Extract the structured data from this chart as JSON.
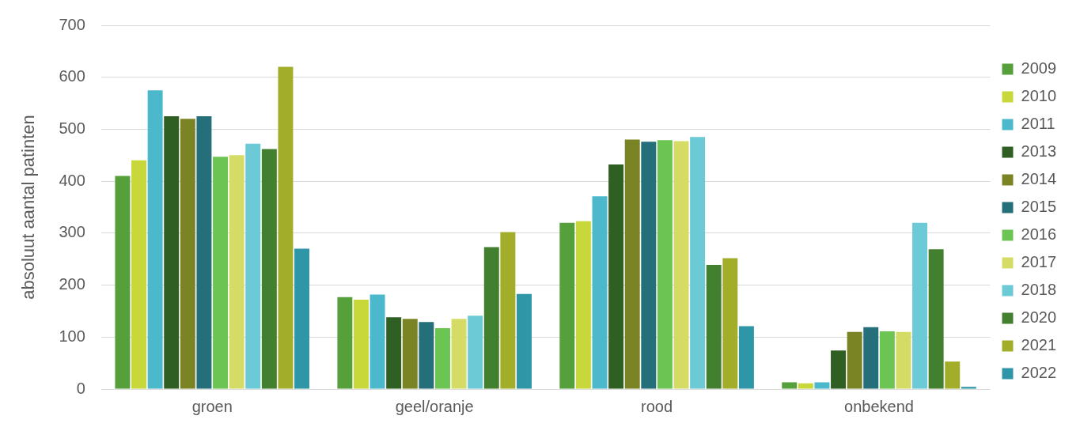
{
  "chart_data": {
    "type": "bar",
    "ylabel": "absoluut aantal patinten",
    "categories": [
      "groen",
      "geel/oranje",
      "rood",
      "onbekend"
    ],
    "series": [
      {
        "name": "2009",
        "color": "#56a03c",
        "values": [
          410,
          177,
          320,
          13
        ]
      },
      {
        "name": "2010",
        "color": "#c8d83a",
        "values": [
          440,
          172,
          323,
          11
        ]
      },
      {
        "name": "2011",
        "color": "#4bb8cc",
        "values": [
          575,
          182,
          371,
          13
        ]
      },
      {
        "name": "2013",
        "color": "#2f5f22",
        "values": [
          525,
          138,
          432,
          74
        ]
      },
      {
        "name": "2014",
        "color": "#7a8424",
        "values": [
          520,
          135,
          480,
          110
        ]
      },
      {
        "name": "2015",
        "color": "#256f7a",
        "values": [
          525,
          129,
          476,
          119
        ]
      },
      {
        "name": "2016",
        "color": "#6cc452",
        "values": [
          447,
          117,
          479,
          111
        ]
      },
      {
        "name": "2017",
        "color": "#d4dc66",
        "values": [
          450,
          135,
          477,
          110
        ]
      },
      {
        "name": "2018",
        "color": "#6ccad6",
        "values": [
          472,
          141,
          485,
          320
        ]
      },
      {
        "name": "2020",
        "color": "#42802f",
        "values": [
          462,
          273,
          239,
          269
        ]
      },
      {
        "name": "2021",
        "color": "#a2ad2a",
        "values": [
          620,
          302,
          252,
          53
        ]
      },
      {
        "name": "2022",
        "color": "#2e96a6",
        "values": [
          270,
          183,
          121,
          4
        ]
      }
    ],
    "ylim": [
      0,
      700
    ],
    "yticks": [
      0,
      100,
      200,
      300,
      400,
      500,
      600,
      700
    ],
    "grid": "y",
    "legend": "right"
  }
}
